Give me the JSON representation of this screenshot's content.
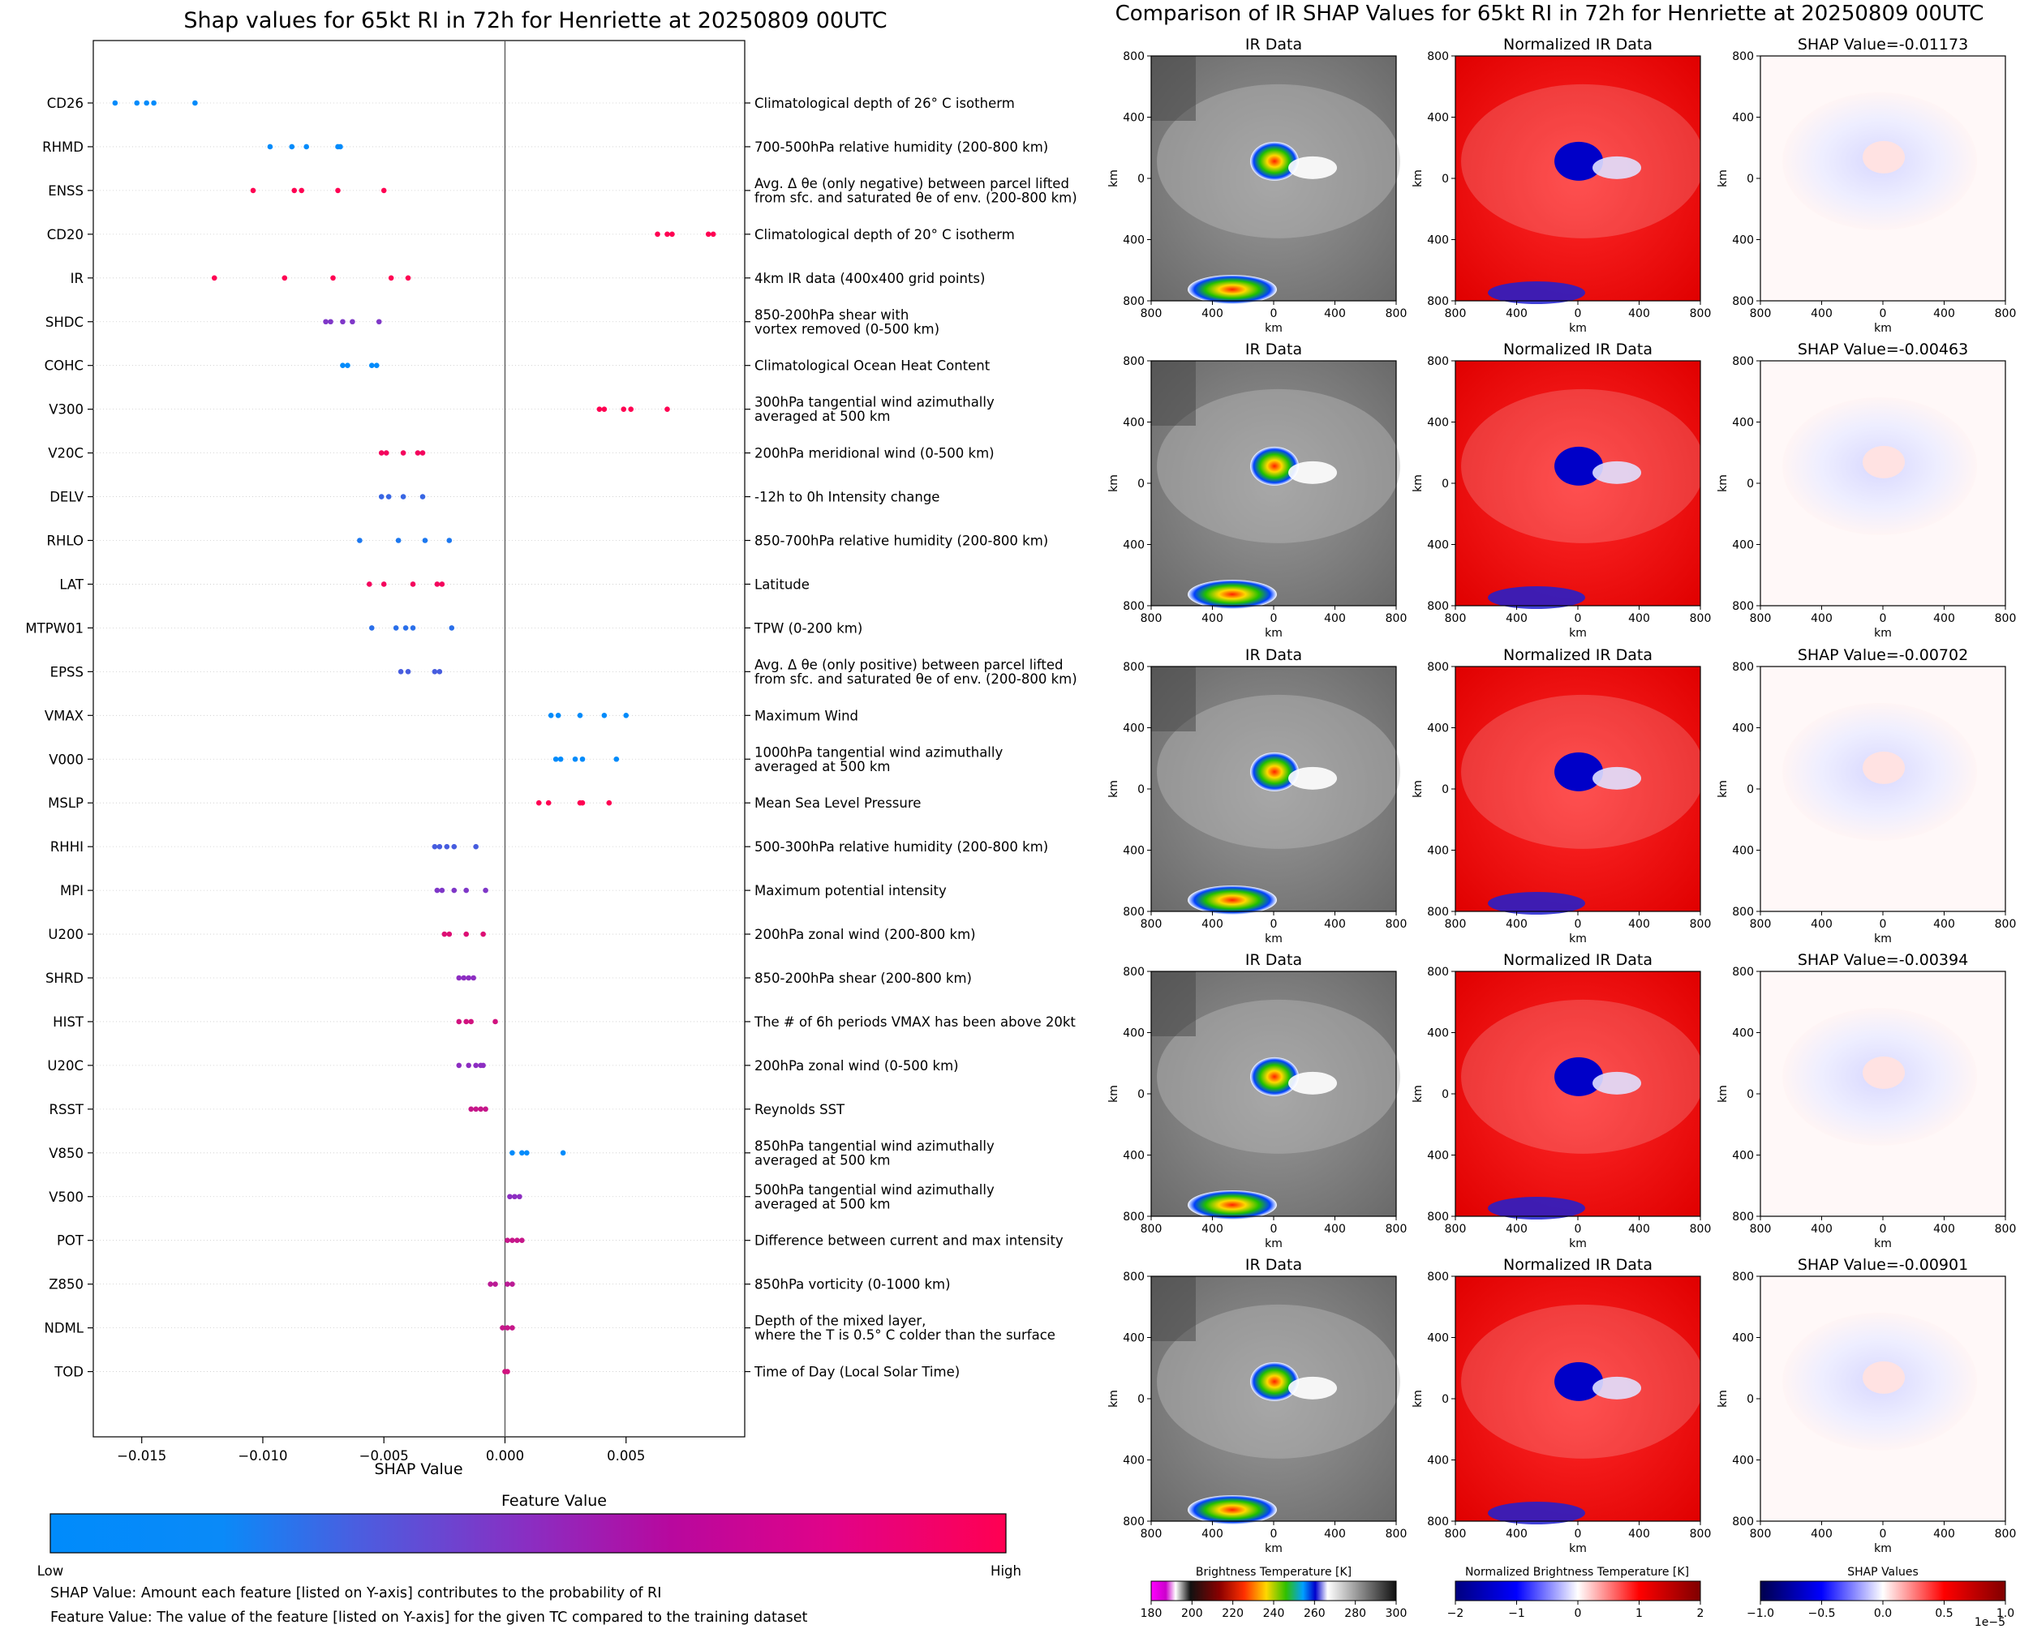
{
  "left_panel": {
    "title": "Shap values for 65kt RI in 72h for Henriette at 20250809 00UTC",
    "xlabel": "SHAP Value",
    "colorbar_title": "Feature Value",
    "colorbar_low": "Low",
    "colorbar_high": "High",
    "note1": "SHAP Value: Amount each feature [listed on Y-axis] contributes to the probability of RI",
    "note2": "Feature Value: The value of the feature [listed on Y-axis] for the given TC compared to the training dataset",
    "colors": {
      "low": "#008bfb",
      "mid": "#8d2ec2",
      "high": "#ff0052"
    }
  },
  "right_panel": {
    "title": "Comparison of IR SHAP Values for 65kt RI in 72h for Henriette at 20250809 00UTC",
    "col_ir": "IR Data",
    "col_norm": "Normalized IR Data",
    "shap_titles": [
      "SHAP Value=-0.01173",
      "SHAP Value=-0.00463",
      "SHAP Value=-0.00702",
      "SHAP Value=-0.00394",
      "SHAP Value=-0.00901"
    ],
    "axis_label": "km",
    "y_ticks": [
      "800",
      "400",
      "0",
      "400",
      "800"
    ],
    "x_ticks": [
      "800",
      "400",
      "0",
      "400",
      "800"
    ],
    "cb_ir_title": "Brightness Temperature [K]",
    "cb_ir_ticks": [
      "180",
      "200",
      "220",
      "240",
      "260",
      "280",
      "300"
    ],
    "cb_norm_title": "Normalized Brightness Temperature [K]",
    "cb_norm_ticks": [
      "−2",
      "−1",
      "0",
      "1",
      "2"
    ],
    "cb_shap_title": "SHAP Values",
    "cb_shap_ticks": [
      "−1.0",
      "−0.5",
      "0.0",
      "0.5",
      "1.0"
    ],
    "cb_shap_exp": "1e−5"
  },
  "chart_data": {
    "type": "scatter",
    "title": "Shap values for 65kt RI in 72h for Henriette at 20250809 00UTC",
    "xlabel": "SHAP Value",
    "xlim": [
      -0.017,
      0.0099
    ],
    "xticks": [
      -0.015,
      -0.01,
      -0.005,
      0.0,
      0.005
    ],
    "xtick_labels": [
      "−0.015",
      "−0.010",
      "−0.005",
      "0.000",
      "0.005"
    ],
    "features": [
      {
        "name": "CD26",
        "desc": [
          "Climatological depth of 26° C isotherm"
        ],
        "fv": 0.0,
        "shap": [
          -0.0161,
          -0.0152,
          -0.0148,
          -0.0145,
          -0.0128
        ]
      },
      {
        "name": "RHMD",
        "desc": [
          "700-500hPa relative humidity (200-800 km)"
        ],
        "fv": 0.0,
        "shap": [
          -0.0097,
          -0.0088,
          -0.0082,
          -0.0069,
          -0.0068
        ]
      },
      {
        "name": "ENSS",
        "desc": [
          "Avg. Δ θe (only negative) between parcel lifted",
          "from sfc. and saturated θe of env. (200-800 km)"
        ],
        "fv": 1.0,
        "shap": [
          -0.0104,
          -0.0087,
          -0.0084,
          -0.0069,
          -0.005
        ]
      },
      {
        "name": "CD20",
        "desc": [
          "Climatological depth of 20° C isotherm"
        ],
        "fv": 1.0,
        "shap": [
          0.0063,
          0.0067,
          0.0069,
          0.0084,
          0.0086
        ]
      },
      {
        "name": "IR",
        "desc": [
          "4km IR data (400x400 grid points)"
        ],
        "fv": 1.0,
        "shap": [
          -0.012,
          -0.0091,
          -0.0071,
          -0.0047,
          -0.004
        ]
      },
      {
        "name": "SHDC",
        "desc": [
          "850-200hPa shear with",
          "vortex removed (0-500 km)"
        ],
        "fv": 0.45,
        "shap": [
          -0.0074,
          -0.0072,
          -0.0067,
          -0.0063,
          -0.0052
        ]
      },
      {
        "name": "COHC",
        "desc": [
          "Climatological Ocean Heat Content"
        ],
        "fv": 0.0,
        "shap": [
          -0.0067,
          -0.0065,
          -0.0055,
          -0.0053
        ]
      },
      {
        "name": "V300",
        "desc": [
          "300hPa tangential wind azimuthally",
          "averaged at 500 km"
        ],
        "fv": 1.0,
        "shap": [
          0.0039,
          0.0041,
          0.0049,
          0.0052,
          0.0067
        ]
      },
      {
        "name": "V20C",
        "desc": [
          "200hPa meridional wind (0-500 km)"
        ],
        "fv": 0.95,
        "shap": [
          -0.0051,
          -0.0049,
          -0.0042,
          -0.0036,
          -0.0034
        ]
      },
      {
        "name": "DELV",
        "desc": [
          "-12h to 0h Intensity change"
        ],
        "fv": 0.2,
        "shap": [
          -0.0051,
          -0.0048,
          -0.0042,
          -0.0034
        ]
      },
      {
        "name": "RHLO",
        "desc": [
          "850-700hPa relative humidity (200-800 km)"
        ],
        "fv": 0.1,
        "shap": [
          -0.006,
          -0.0044,
          -0.0033,
          -0.0023
        ]
      },
      {
        "name": "LAT",
        "desc": [
          "Latitude"
        ],
        "fv": 0.95,
        "shap": [
          -0.0056,
          -0.005,
          -0.0038,
          -0.0028,
          -0.0026
        ]
      },
      {
        "name": "MTPW01",
        "desc": [
          "TPW (0-200 km)"
        ],
        "fv": 0.15,
        "shap": [
          -0.0055,
          -0.0045,
          -0.0041,
          -0.0038,
          -0.0022
        ]
      },
      {
        "name": "EPSS",
        "desc": [
          "Avg. Δ θe (only positive) between parcel lifted",
          "from sfc. and saturated θe of env. (200-800 km)"
        ],
        "fv": 0.25,
        "shap": [
          -0.0043,
          -0.004,
          -0.0029,
          -0.0027
        ]
      },
      {
        "name": "VMAX",
        "desc": [
          "Maximum Wind"
        ],
        "fv": 0.0,
        "shap": [
          0.0019,
          0.0022,
          0.0031,
          0.0041,
          0.005
        ]
      },
      {
        "name": "V000",
        "desc": [
          "1000hPa tangential wind azimuthally",
          "averaged at 500 km"
        ],
        "fv": 0.0,
        "shap": [
          0.0021,
          0.0023,
          0.0029,
          0.0032,
          0.0046
        ]
      },
      {
        "name": "MSLP",
        "desc": [
          "Mean Sea Level Pressure"
        ],
        "fv": 1.0,
        "shap": [
          0.0014,
          0.0018,
          0.0031,
          0.0032,
          0.0043
        ]
      },
      {
        "name": "RHHI",
        "desc": [
          "500-300hPa relative humidity (200-800 km)"
        ],
        "fv": 0.25,
        "shap": [
          -0.0029,
          -0.0027,
          -0.0024,
          -0.0021,
          -0.0012
        ]
      },
      {
        "name": "MPI",
        "desc": [
          "Maximum potential intensity"
        ],
        "fv": 0.45,
        "shap": [
          -0.0028,
          -0.0026,
          -0.0021,
          -0.0016,
          -0.0008
        ]
      },
      {
        "name": "U200",
        "desc": [
          "200hPa zonal wind (200-800 km)"
        ],
        "fv": 0.85,
        "shap": [
          -0.0025,
          -0.0023,
          -0.0016,
          -0.0009
        ]
      },
      {
        "name": "SHRD",
        "desc": [
          "850-200hPa shear (200-800 km)"
        ],
        "fv": 0.5,
        "shap": [
          -0.0019,
          -0.0017,
          -0.0015,
          -0.0013
        ]
      },
      {
        "name": "HIST",
        "desc": [
          "The # of 6h periods VMAX has been above 20kt"
        ],
        "fv": 0.8,
        "shap": [
          -0.0019,
          -0.0016,
          -0.0014,
          -0.0004
        ]
      },
      {
        "name": "U20C",
        "desc": [
          "200hPa zonal wind (0-500 km)"
        ],
        "fv": 0.5,
        "shap": [
          -0.0019,
          -0.0015,
          -0.0012,
          -0.001,
          -0.0009
        ]
      },
      {
        "name": "RSST",
        "desc": [
          "Reynolds SST"
        ],
        "fv": 0.75,
        "shap": [
          -0.0014,
          -0.0012,
          -0.001,
          -0.0008
        ]
      },
      {
        "name": "V850",
        "desc": [
          "850hPa tangential wind azimuthally",
          "averaged at 500 km"
        ],
        "fv": 0.0,
        "shap": [
          0.0003,
          0.0007,
          0.0009,
          0.0024
        ]
      },
      {
        "name": "V500",
        "desc": [
          "500hPa tangential wind azimuthally",
          "averaged at 500 km"
        ],
        "fv": 0.5,
        "shap": [
          0.0002,
          0.0004,
          0.0006
        ]
      },
      {
        "name": "POT",
        "desc": [
          "Difference between current and max intensity"
        ],
        "fv": 0.75,
        "shap": [
          0.0001,
          0.0003,
          0.0005,
          0.0007
        ]
      },
      {
        "name": "Z850",
        "desc": [
          "850hPa vorticity (0-1000 km)"
        ],
        "fv": 0.7,
        "shap": [
          -0.0006,
          -0.0004,
          0.0001,
          0.0003
        ]
      },
      {
        "name": "NDML",
        "desc": [
          "Depth of the mixed layer,",
          "where the T is 0.5° C colder than the surface"
        ],
        "fv": 0.75,
        "shap": [
          -0.0001,
          0.0001,
          0.0003
        ]
      },
      {
        "name": "TOD",
        "desc": [
          "Time of Day (Local Solar Time)"
        ],
        "fv": 0.8,
        "shap": [
          0.0,
          0.0001
        ]
      }
    ]
  }
}
